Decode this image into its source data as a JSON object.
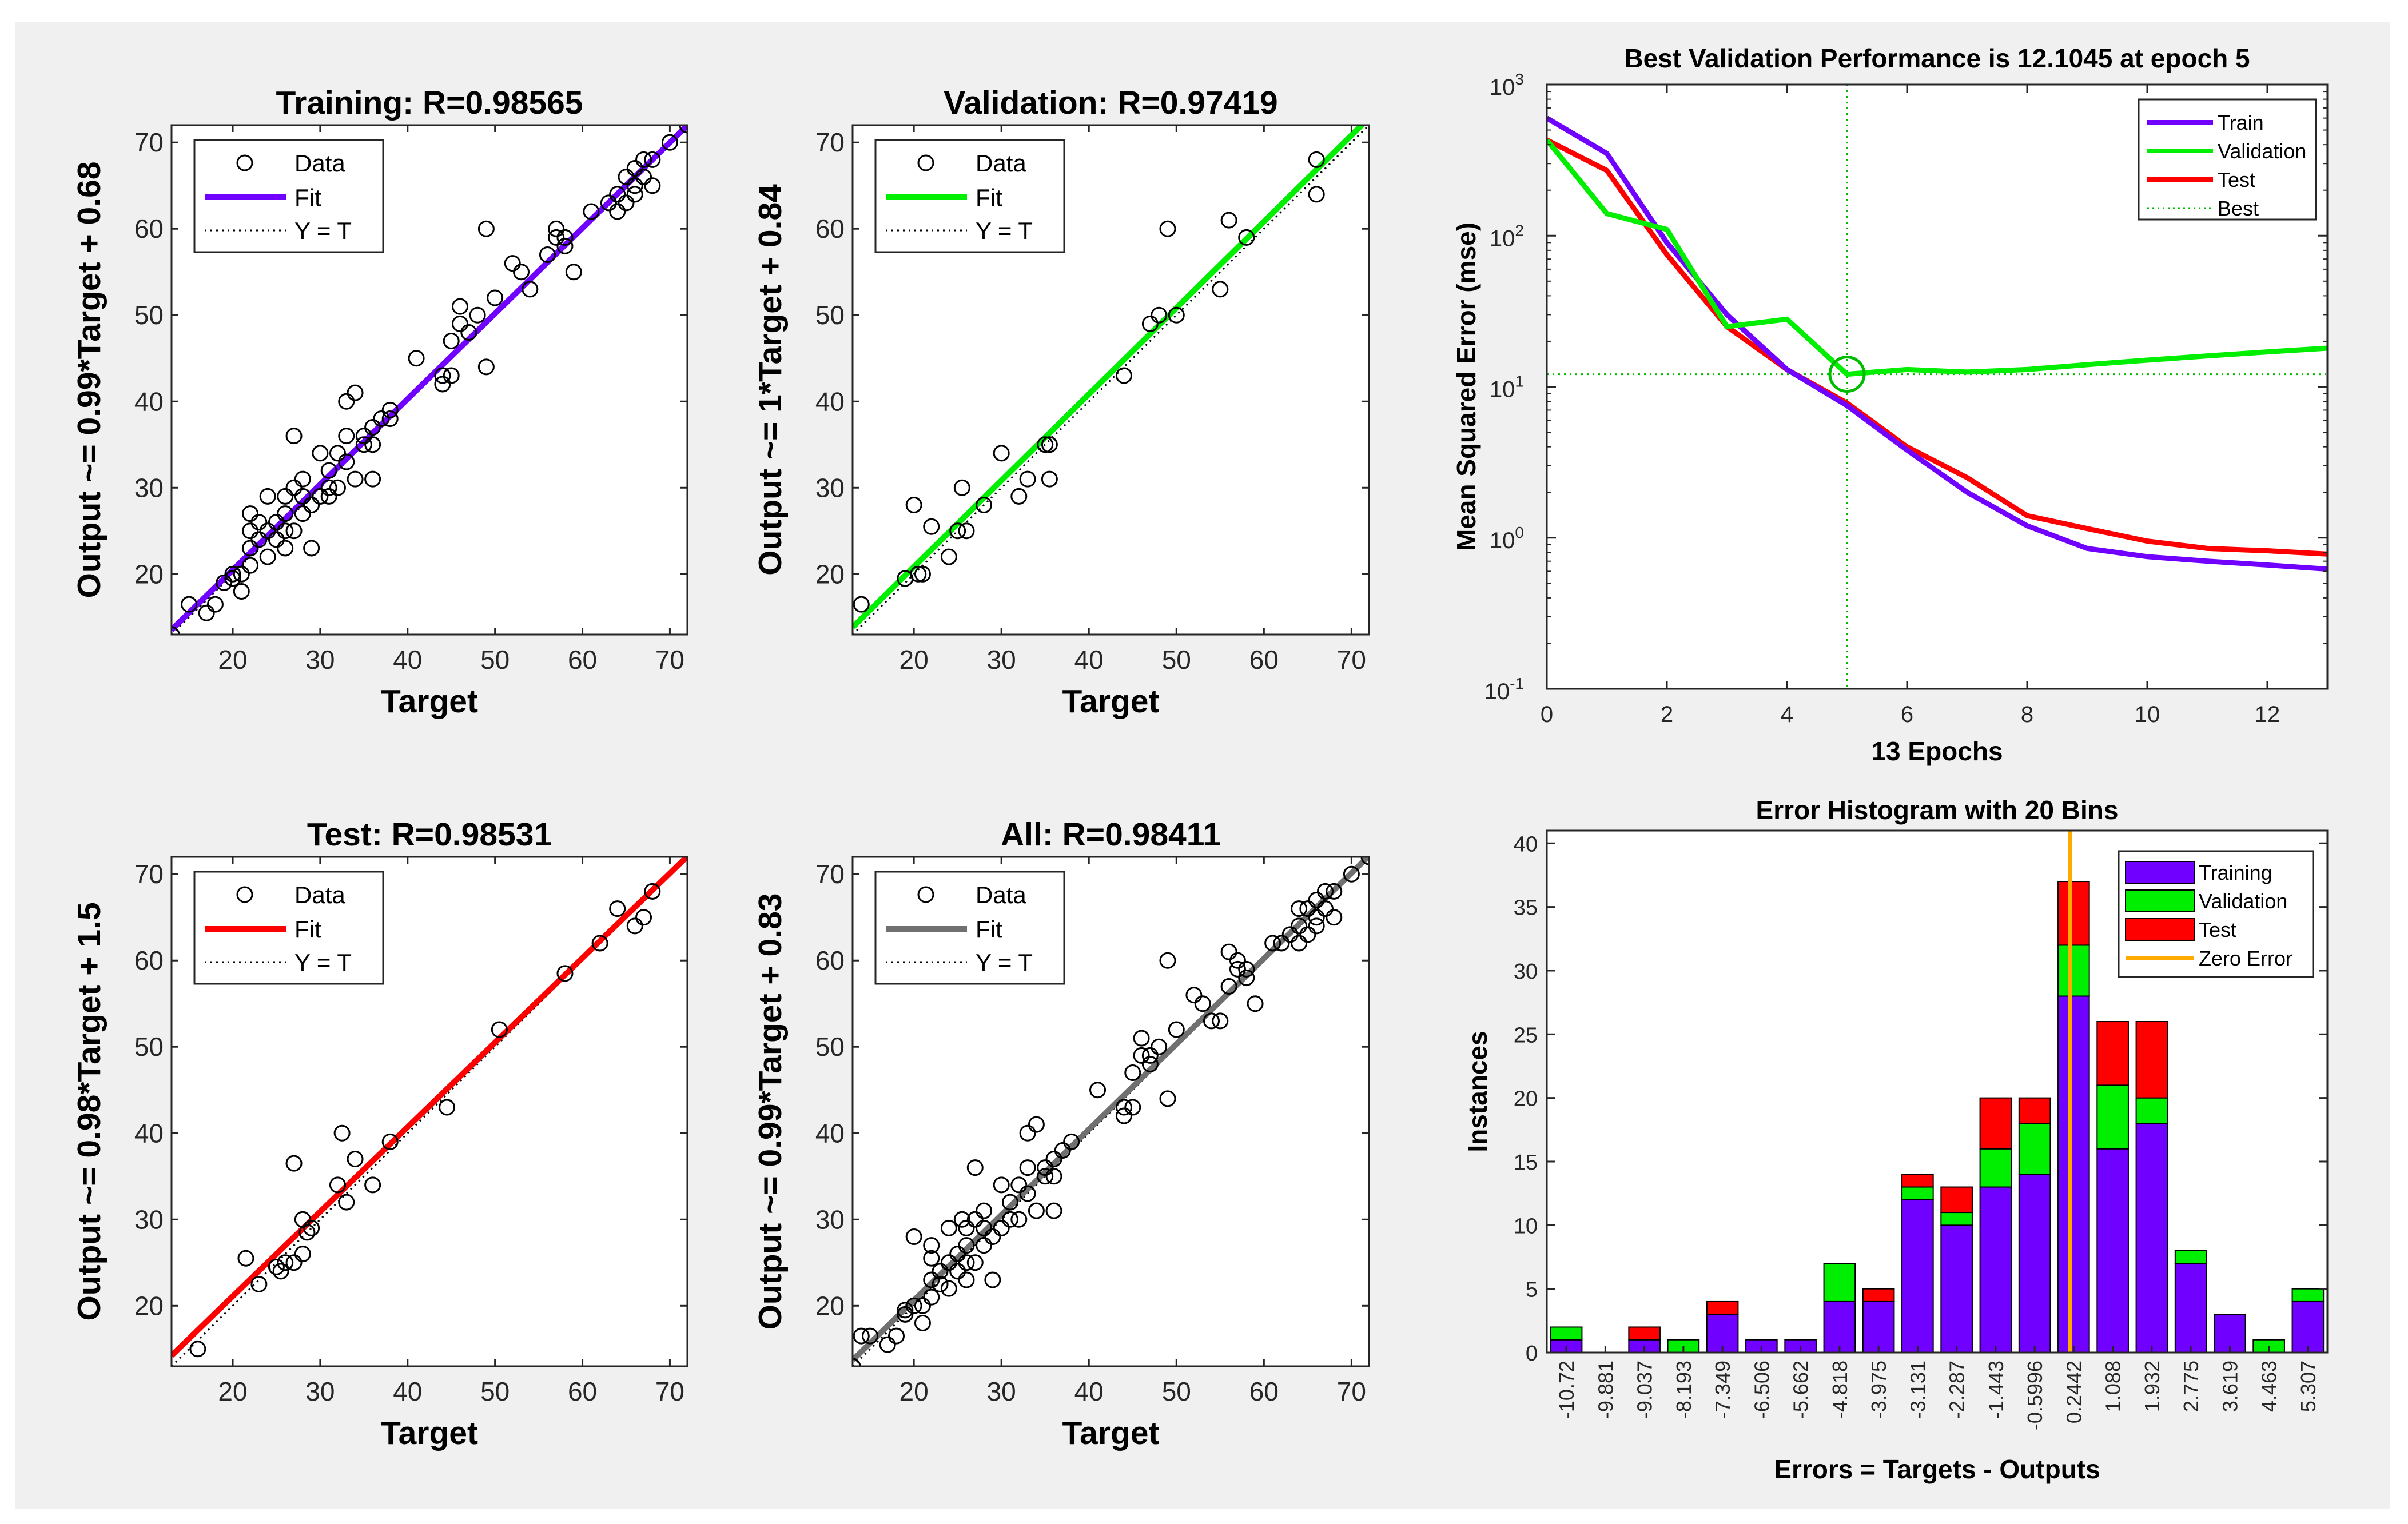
{
  "chart_data": [
    {
      "type": "scatter",
      "title": "Training: R=0.98565",
      "xlabel": "Target",
      "ylabel": "Output ~= 0.99*Target + 0.68",
      "xlim": [
        13,
        72
      ],
      "ylim": [
        13,
        72
      ],
      "xticks": [
        20,
        30,
        40,
        50,
        60,
        70
      ],
      "yticks": [
        20,
        30,
        40,
        50,
        60,
        70
      ],
      "legend": [
        "Data",
        "Fit",
        "Y = T"
      ],
      "legend_position": "top-left",
      "fit_color": "#7000ff",
      "fit": {
        "slope": 0.99,
        "intercept": 0.68
      },
      "points": [
        [
          13,
          13
        ],
        [
          15,
          16.5
        ],
        [
          17,
          15.5
        ],
        [
          18,
          16.5
        ],
        [
          19,
          19
        ],
        [
          20,
          19.5
        ],
        [
          20,
          20
        ],
        [
          21,
          18
        ],
        [
          21,
          20
        ],
        [
          22,
          21
        ],
        [
          22,
          23
        ],
        [
          22,
          25
        ],
        [
          22,
          27
        ],
        [
          23,
          24
        ],
        [
          23,
          26
        ],
        [
          24,
          22
        ],
        [
          24,
          25
        ],
        [
          24,
          29
        ],
        [
          25,
          24
        ],
        [
          25,
          26
        ],
        [
          26,
          23
        ],
        [
          26,
          25
        ],
        [
          26,
          27
        ],
        [
          26,
          29
        ],
        [
          27,
          25
        ],
        [
          27,
          30
        ],
        [
          27,
          36
        ],
        [
          28,
          27
        ],
        [
          28,
          29
        ],
        [
          28,
          31
        ],
        [
          29,
          28
        ],
        [
          29,
          23
        ],
        [
          30,
          29
        ],
        [
          30,
          34
        ],
        [
          31,
          30
        ],
        [
          31,
          32
        ],
        [
          31,
          29
        ],
        [
          32,
          30
        ],
        [
          32,
          34
        ],
        [
          33,
          33
        ],
        [
          33,
          36
        ],
        [
          33,
          40
        ],
        [
          34,
          31
        ],
        [
          34,
          41
        ],
        [
          35,
          36
        ],
        [
          35,
          35
        ],
        [
          36,
          31
        ],
        [
          36,
          35
        ],
        [
          36,
          37
        ],
        [
          37,
          38
        ],
        [
          38,
          38
        ],
        [
          38,
          39
        ],
        [
          41,
          45
        ],
        [
          44,
          42
        ],
        [
          44,
          43
        ],
        [
          45,
          43
        ],
        [
          45,
          47
        ],
        [
          46,
          51
        ],
        [
          46,
          49
        ],
        [
          47,
          48
        ],
        [
          48,
          50
        ],
        [
          49,
          44
        ],
        [
          49,
          60
        ],
        [
          50,
          52
        ],
        [
          52,
          56
        ],
        [
          53,
          55
        ],
        [
          54,
          53
        ],
        [
          56,
          57
        ],
        [
          57,
          59
        ],
        [
          57,
          60
        ],
        [
          58,
          58
        ],
        [
          58,
          59
        ],
        [
          59,
          55
        ],
        [
          61,
          62
        ],
        [
          63,
          63
        ],
        [
          64,
          62
        ],
        [
          64,
          64
        ],
        [
          65,
          66
        ],
        [
          65,
          63
        ],
        [
          66,
          64
        ],
        [
          66,
          67
        ],
        [
          66,
          65
        ],
        [
          67,
          66
        ],
        [
          67,
          68
        ],
        [
          68,
          65
        ],
        [
          68,
          68
        ],
        [
          70,
          70
        ],
        [
          72,
          72
        ]
      ]
    },
    {
      "type": "scatter",
      "title": "Validation: R=0.97419",
      "xlabel": "Target",
      "ylabel": "Output ~= 1*Target + 0.84",
      "xlim": [
        13,
        72
      ],
      "ylim": [
        13,
        72
      ],
      "xticks": [
        20,
        30,
        40,
        50,
        60,
        70
      ],
      "yticks": [
        20,
        30,
        40,
        50,
        60,
        70
      ],
      "legend": [
        "Data",
        "Fit",
        "Y = T"
      ],
      "legend_position": "top-left",
      "fit_color": "#00ee00",
      "fit": {
        "slope": 1.0,
        "intercept": 0.84
      },
      "points": [
        [
          14,
          16.5
        ],
        [
          19,
          19.5
        ],
        [
          20,
          28
        ],
        [
          20.5,
          20
        ],
        [
          21,
          20
        ],
        [
          22,
          25.5
        ],
        [
          24,
          22
        ],
        [
          25,
          25
        ],
        [
          25.5,
          30
        ],
        [
          26,
          25
        ],
        [
          28,
          28
        ],
        [
          30,
          34
        ],
        [
          32,
          29
        ],
        [
          33,
          31
        ],
        [
          35,
          35
        ],
        [
          35.5,
          35
        ],
        [
          35.5,
          31
        ],
        [
          44,
          43
        ],
        [
          47,
          49
        ],
        [
          48,
          50
        ],
        [
          49,
          60
        ],
        [
          50,
          50
        ],
        [
          55,
          53
        ],
        [
          56,
          61
        ],
        [
          58,
          59
        ],
        [
          66,
          64
        ],
        [
          66,
          68
        ]
      ]
    },
    {
      "type": "scatter",
      "title": "Test: R=0.98531",
      "xlabel": "Target",
      "ylabel": "Output ~= 0.98*Target + 1.5",
      "xlim": [
        13,
        72
      ],
      "ylim": [
        13,
        72
      ],
      "xticks": [
        20,
        30,
        40,
        50,
        60,
        70
      ],
      "yticks": [
        20,
        30,
        40,
        50,
        60,
        70
      ],
      "legend": [
        "Data",
        "Fit",
        "Y = T"
      ],
      "legend_position": "top-left",
      "fit_color": "#ff0000",
      "fit": {
        "slope": 0.98,
        "intercept": 1.5
      },
      "points": [
        [
          16,
          15
        ],
        [
          21.5,
          25.5
        ],
        [
          23,
          22.5
        ],
        [
          25,
          24.5
        ],
        [
          25.5,
          24
        ],
        [
          26,
          25
        ],
        [
          27,
          25
        ],
        [
          27,
          36.5
        ],
        [
          28,
          26
        ],
        [
          28,
          30
        ],
        [
          28.5,
          28.5
        ],
        [
          29,
          29
        ],
        [
          32,
          34
        ],
        [
          32.5,
          40
        ],
        [
          33,
          32
        ],
        [
          34,
          37
        ],
        [
          36,
          34
        ],
        [
          38,
          39
        ],
        [
          44.5,
          43
        ],
        [
          50.5,
          52
        ],
        [
          58,
          58.5
        ],
        [
          62,
          62
        ],
        [
          64,
          66
        ],
        [
          66,
          64
        ],
        [
          67,
          65
        ],
        [
          68,
          68
        ]
      ]
    },
    {
      "type": "scatter",
      "title": "All: R=0.98411",
      "xlabel": "Target",
      "ylabel": "Output ~= 0.99*Target + 0.83",
      "xlim": [
        13,
        72
      ],
      "ylim": [
        13,
        72
      ],
      "xticks": [
        20,
        30,
        40,
        50,
        60,
        70
      ],
      "yticks": [
        20,
        30,
        40,
        50,
        60,
        70
      ],
      "legend": [
        "Data",
        "Fit",
        "Y = T"
      ],
      "legend_position": "top-left",
      "fit_color": "#707070",
      "fit": {
        "slope": 0.99,
        "intercept": 0.83
      },
      "points": [
        [
          13,
          13
        ],
        [
          14,
          16.5
        ],
        [
          15,
          16.5
        ],
        [
          17,
          15.5
        ],
        [
          18,
          16.5
        ],
        [
          19,
          19
        ],
        [
          19,
          19.5
        ],
        [
          20,
          20
        ],
        [
          20,
          28
        ],
        [
          21,
          18
        ],
        [
          21,
          20
        ],
        [
          22,
          21
        ],
        [
          22,
          23
        ],
        [
          22,
          25.5
        ],
        [
          22,
          27
        ],
        [
          23,
          24
        ],
        [
          23,
          22.5
        ],
        [
          24,
          22
        ],
        [
          24,
          25
        ],
        [
          24,
          29
        ],
        [
          25,
          24
        ],
        [
          25,
          26
        ],
        [
          25.5,
          30
        ],
        [
          26,
          23
        ],
        [
          26,
          25
        ],
        [
          26,
          27
        ],
        [
          26,
          29
        ],
        [
          27,
          25
        ],
        [
          27,
          30
        ],
        [
          27,
          36
        ],
        [
          28,
          27
        ],
        [
          28,
          29
        ],
        [
          28,
          31
        ],
        [
          29,
          28
        ],
        [
          29,
          23
        ],
        [
          30,
          29
        ],
        [
          30,
          34
        ],
        [
          31,
          30
        ],
        [
          31,
          32
        ],
        [
          32,
          30
        ],
        [
          32,
          34
        ],
        [
          33,
          33
        ],
        [
          33,
          36
        ],
        [
          33,
          40
        ],
        [
          34,
          31
        ],
        [
          34,
          41
        ],
        [
          35,
          35
        ],
        [
          35,
          36
        ],
        [
          36,
          31
        ],
        [
          36,
          35
        ],
        [
          36,
          37
        ],
        [
          37,
          38
        ],
        [
          38,
          39
        ],
        [
          41,
          45
        ],
        [
          44,
          42
        ],
        [
          44,
          43
        ],
        [
          45,
          43
        ],
        [
          45,
          47
        ],
        [
          46,
          51
        ],
        [
          46,
          49
        ],
        [
          47,
          48
        ],
        [
          47,
          49
        ],
        [
          48,
          50
        ],
        [
          49,
          44
        ],
        [
          49,
          60
        ],
        [
          50,
          52
        ],
        [
          52,
          56
        ],
        [
          53,
          55
        ],
        [
          54,
          53
        ],
        [
          55,
          53
        ],
        [
          56,
          57
        ],
        [
          56,
          61
        ],
        [
          57,
          59
        ],
        [
          57,
          60
        ],
        [
          58,
          58
        ],
        [
          58,
          59
        ],
        [
          59,
          55
        ],
        [
          61,
          62
        ],
        [
          62,
          62
        ],
        [
          63,
          63
        ],
        [
          64,
          62
        ],
        [
          64,
          64
        ],
        [
          64,
          66
        ],
        [
          65,
          66
        ],
        [
          65,
          63
        ],
        [
          66,
          64
        ],
        [
          66,
          67
        ],
        [
          66,
          65
        ],
        [
          67,
          66
        ],
        [
          67,
          68
        ],
        [
          68,
          65
        ],
        [
          68,
          68
        ],
        [
          70,
          70
        ],
        [
          72,
          72
        ]
      ]
    },
    {
      "type": "line",
      "title": "Best Validation Performance is 12.1045 at epoch 5",
      "xlabel": "13 Epochs",
      "ylabel": "Mean Squared Error  (mse)",
      "yscale": "log",
      "xlim": [
        0,
        13
      ],
      "ylim": [
        0.1,
        1000
      ],
      "xticks": [
        0,
        2,
        4,
        6,
        8,
        10,
        12
      ],
      "yticks": [
        0.1,
        1,
        10,
        100,
        1000
      ],
      "ytick_exponents": [
        "-1",
        "0",
        "1",
        "2",
        "3"
      ],
      "legend_position": "top-right",
      "x": [
        0,
        1,
        2,
        3,
        4,
        5,
        6,
        7,
        8,
        9,
        10,
        11,
        12,
        13
      ],
      "series": [
        {
          "name": "Train",
          "color": "#7000ff",
          "values": [
            600,
            350,
            90,
            30,
            13,
            7.5,
            3.8,
            2,
            1.2,
            0.85,
            0.75,
            0.7,
            0.66,
            0.62
          ]
        },
        {
          "name": "Validation",
          "color": "#00ee00",
          "values": [
            430,
            140,
            110,
            25,
            28,
            12.1,
            13,
            12.5,
            13,
            14,
            15,
            16,
            17,
            18
          ]
        },
        {
          "name": "Test",
          "color": "#ff0000",
          "values": [
            430,
            270,
            75,
            25,
            13,
            7.8,
            4,
            2.5,
            1.4,
            1.15,
            0.95,
            0.85,
            0.82,
            0.78
          ]
        }
      ],
      "best": {
        "name": "Best",
        "color": "#00bb00",
        "epoch": 5,
        "value": 12.1045
      }
    },
    {
      "type": "bar",
      "title": "Error Histogram with 20 Bins",
      "xlabel": "Errors = Targets - Outputs",
      "ylabel": "Instances",
      "ylim": [
        0,
        41
      ],
      "yticks": [
        0,
        5,
        10,
        15,
        20,
        25,
        30,
        35,
        40
      ],
      "legend_position": "top-right",
      "categories": [
        "-10.72",
        "-9.881",
        "-9.037",
        "-8.193",
        "-7.349",
        "-6.506",
        "-5.662",
        "-4.818",
        "-3.975",
        "-3.131",
        "-2.287",
        "-1.443",
        "-0.5996",
        "0.2442",
        "1.088",
        "1.932",
        "2.775",
        "3.619",
        "4.463",
        "5.307"
      ],
      "series": [
        {
          "name": "Training",
          "color": "#7000ff",
          "values": [
            1,
            0,
            1,
            0,
            3,
            1,
            1,
            4,
            4,
            12,
            10,
            13,
            14,
            28,
            16,
            18,
            7,
            3,
            0,
            4
          ]
        },
        {
          "name": "Validation",
          "color": "#00ee00",
          "values": [
            1,
            0,
            0,
            1,
            0,
            0,
            0,
            3,
            0,
            1,
            1,
            3,
            4,
            4,
            5,
            2,
            1,
            0,
            1,
            1
          ]
        },
        {
          "name": "Test",
          "color": "#ff0000",
          "values": [
            0,
            0,
            1,
            0,
            1,
            0,
            0,
            0,
            1,
            1,
            2,
            4,
            2,
            5,
            5,
            6,
            0,
            0,
            0,
            0
          ]
        }
      ],
      "zero_error": {
        "name": "Zero Error",
        "color": "#ffaa00",
        "bin_position": 12.9
      }
    }
  ]
}
